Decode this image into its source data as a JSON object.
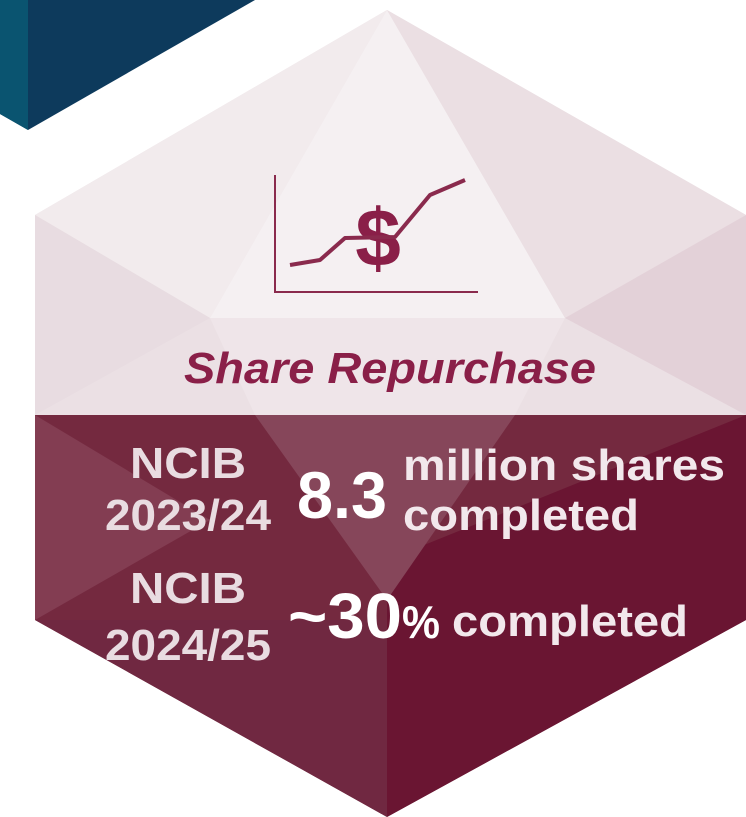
{
  "title": "Share Repurchase",
  "icon_symbol": "$",
  "items": [
    {
      "label": [
        "NCIB",
        "2023/24"
      ],
      "figure": "8.3",
      "description": [
        "million shares",
        "completed"
      ]
    },
    {
      "label": [
        "NCIB",
        "2024/25"
      ],
      "figure": "~30",
      "figure_unit": "%",
      "description": [
        "completed"
      ]
    }
  ]
}
